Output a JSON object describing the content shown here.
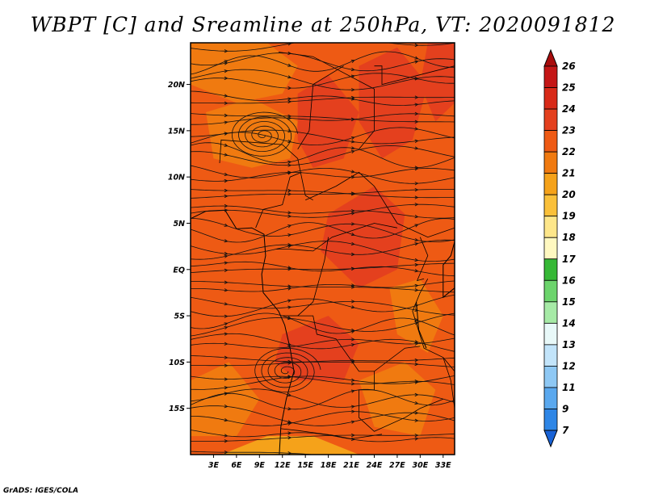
{
  "title": "WBPT [C] and Sreamline at 250hPa, VT: 2020091812",
  "credit": "GrADS: IGES/COLA",
  "map": {
    "lon_range": [
      0,
      34.5
    ],
    "lat_range": [
      -20,
      24.5
    ],
    "lat_ticks": [
      {
        "value": 20,
        "label": "20N"
      },
      {
        "value": 15,
        "label": "15N"
      },
      {
        "value": 10,
        "label": "10N"
      },
      {
        "value": 5,
        "label": "5N"
      },
      {
        "value": 0,
        "label": "EQ"
      },
      {
        "value": -5,
        "label": "5S"
      },
      {
        "value": -10,
        "label": "10S"
      },
      {
        "value": -15,
        "label": "15S"
      }
    ],
    "lon_ticks": [
      {
        "value": 3,
        "label": "3E"
      },
      {
        "value": 6,
        "label": "6E"
      },
      {
        "value": 9,
        "label": "9E"
      },
      {
        "value": 12,
        "label": "12E"
      },
      {
        "value": 15,
        "label": "15E"
      },
      {
        "value": 18,
        "label": "18E"
      },
      {
        "value": 21,
        "label": "21E"
      },
      {
        "value": 24,
        "label": "24E"
      },
      {
        "value": 27,
        "label": "27E"
      },
      {
        "value": 30,
        "label": "30E"
      },
      {
        "value": 33,
        "label": "33E"
      }
    ],
    "field_colors": {
      "low": "#f07a10",
      "mid": "#ee5a14",
      "high": "#e4401e",
      "warm": "#f5a21a"
    },
    "vortices": [
      {
        "lon": 9.5,
        "lat": 14.5,
        "sense": "cw"
      },
      {
        "lon": 12.5,
        "lat": -11,
        "sense": "cw"
      }
    ]
  },
  "colorbar": {
    "levels": [
      "26",
      "25",
      "24",
      "23",
      "22",
      "21",
      "20",
      "19",
      "18",
      "17",
      "16",
      "15",
      "14",
      "13",
      "12",
      "11",
      "9",
      "7"
    ],
    "colors": [
      "#a80c0c",
      "#c41616",
      "#d82a18",
      "#e4401e",
      "#ee5a14",
      "#f07a10",
      "#f5a21a",
      "#fac03a",
      "#fde68a",
      "#fff8c0",
      "#36b836",
      "#6cd46c",
      "#a6eaa6",
      "#e8f8f8",
      "#c2e4fa",
      "#8ec8f4",
      "#5aa8ee",
      "#2e86e6",
      "#1862d6"
    ]
  }
}
